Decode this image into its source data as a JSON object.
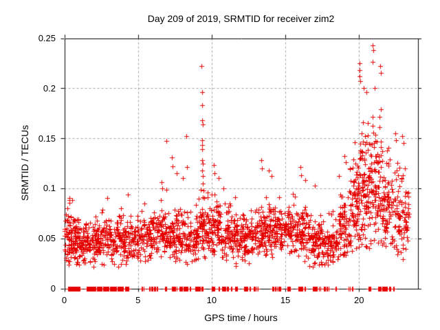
{
  "chart_data": {
    "type": "scatter",
    "title": "Day 209 of 2019, SRMTID for receiver zim2",
    "xlabel": "GPS time / hours",
    "ylabel": "SRMTID / TECUs",
    "xlim": [
      0,
      24
    ],
    "ylim": [
      0,
      0.25
    ],
    "xticks": [
      0,
      5,
      10,
      15,
      20
    ],
    "xtick_labels": [
      "0",
      "5",
      "10",
      "15",
      "20"
    ],
    "yticks": [
      0,
      0.05,
      0.1,
      0.15,
      0.2,
      0.25
    ],
    "ytick_labels": [
      "0",
      "0.05",
      "0.1",
      "0.15",
      "0.2",
      "0.25"
    ],
    "grid_xticks": [
      5,
      10,
      15,
      20
    ],
    "grid_yticks": [
      0.05,
      0.1,
      0.15,
      0.2
    ],
    "grid": true,
    "legend": "none",
    "background_color": "#ffffff",
    "border_color": "#000000",
    "grid_color": "#a0a0a0",
    "marker": {
      "shape": "plus",
      "color": "#e60000",
      "size": 7
    },
    "seed": 2019209,
    "series_name": "SRMTID",
    "bands": [
      {
        "x0": 0.0,
        "x1": 0.35,
        "n": 40,
        "mu": 0.048,
        "sd": 0.016,
        "lo": 0.02,
        "hi": 0.09
      },
      {
        "x0": 0.3,
        "x1": 1.0,
        "n": 85,
        "mu": 0.05,
        "sd": 0.014,
        "lo": 0.022,
        "hi": 0.092
      },
      {
        "x0": 1.0,
        "x1": 2.1,
        "n": 100,
        "mu": 0.044,
        "sd": 0.01,
        "lo": 0.02,
        "hi": 0.075
      },
      {
        "x0": 2.1,
        "x1": 3.1,
        "n": 95,
        "mu": 0.047,
        "sd": 0.011,
        "lo": 0.022,
        "hi": 0.09
      },
      {
        "x0": 3.1,
        "x1": 4.2,
        "n": 100,
        "mu": 0.049,
        "sd": 0.012,
        "lo": 0.02,
        "hi": 0.085
      },
      {
        "x0": 4.2,
        "x1": 5.2,
        "n": 80,
        "mu": 0.048,
        "sd": 0.011,
        "lo": 0.024,
        "hi": 0.08
      },
      {
        "x0": 5.2,
        "x1": 6.3,
        "n": 85,
        "mu": 0.052,
        "sd": 0.012,
        "lo": 0.026,
        "hi": 0.088
      },
      {
        "x0": 6.3,
        "x1": 7.2,
        "n": 80,
        "mu": 0.055,
        "sd": 0.014,
        "lo": 0.028,
        "hi": 0.1
      },
      {
        "x0": 7.2,
        "x1": 8.2,
        "n": 85,
        "mu": 0.053,
        "sd": 0.014,
        "lo": 0.026,
        "hi": 0.1
      },
      {
        "x0": 8.2,
        "x1": 9.1,
        "n": 80,
        "mu": 0.05,
        "sd": 0.013,
        "lo": 0.024,
        "hi": 0.1
      },
      {
        "x0": 9.1,
        "x1": 9.7,
        "n": 55,
        "mu": 0.06,
        "sd": 0.018,
        "lo": 0.03,
        "hi": 0.105
      },
      {
        "x0": 9.7,
        "x1": 10.6,
        "n": 85,
        "mu": 0.06,
        "sd": 0.017,
        "lo": 0.03,
        "hi": 0.115
      },
      {
        "x0": 10.6,
        "x1": 11.6,
        "n": 90,
        "mu": 0.053,
        "sd": 0.013,
        "lo": 0.026,
        "hi": 0.098
      },
      {
        "x0": 11.6,
        "x1": 12.6,
        "n": 90,
        "mu": 0.049,
        "sd": 0.011,
        "lo": 0.024,
        "hi": 0.082
      },
      {
        "x0": 12.6,
        "x1": 13.6,
        "n": 90,
        "mu": 0.054,
        "sd": 0.013,
        "lo": 0.028,
        "hi": 0.1
      },
      {
        "x0": 13.6,
        "x1": 14.6,
        "n": 95,
        "mu": 0.058,
        "sd": 0.014,
        "lo": 0.03,
        "hi": 0.105
      },
      {
        "x0": 14.6,
        "x1": 15.6,
        "n": 90,
        "mu": 0.058,
        "sd": 0.012,
        "lo": 0.03,
        "hi": 0.095
      },
      {
        "x0": 15.6,
        "x1": 16.6,
        "n": 90,
        "mu": 0.054,
        "sd": 0.013,
        "lo": 0.026,
        "hi": 0.105
      },
      {
        "x0": 16.6,
        "x1": 17.6,
        "n": 90,
        "mu": 0.048,
        "sd": 0.012,
        "lo": 0.02,
        "hi": 0.098
      },
      {
        "x0": 17.6,
        "x1": 18.6,
        "n": 80,
        "mu": 0.044,
        "sd": 0.011,
        "lo": 0.022,
        "hi": 0.078
      },
      {
        "x0": 18.6,
        "x1": 19.3,
        "n": 70,
        "mu": 0.062,
        "sd": 0.02,
        "lo": 0.032,
        "hi": 0.125
      },
      {
        "x0": 19.3,
        "x1": 20.0,
        "n": 85,
        "mu": 0.08,
        "sd": 0.028,
        "lo": 0.035,
        "hi": 0.16
      },
      {
        "x0": 20.0,
        "x1": 20.7,
        "n": 90,
        "mu": 0.095,
        "sd": 0.034,
        "lo": 0.04,
        "hi": 0.185
      },
      {
        "x0": 20.7,
        "x1": 21.5,
        "n": 95,
        "mu": 0.1,
        "sd": 0.036,
        "lo": 0.045,
        "hi": 0.2
      },
      {
        "x0": 21.5,
        "x1": 22.2,
        "n": 75,
        "mu": 0.08,
        "sd": 0.026,
        "lo": 0.04,
        "hi": 0.158
      },
      {
        "x0": 22.2,
        "x1": 22.9,
        "n": 60,
        "mu": 0.07,
        "sd": 0.024,
        "lo": 0.032,
        "hi": 0.15
      },
      {
        "x0": 22.9,
        "x1": 23.4,
        "n": 40,
        "mu": 0.062,
        "sd": 0.022,
        "lo": 0.028,
        "hi": 0.125
      }
    ],
    "spike_points": [
      [
        0.35,
        0.09
      ],
      [
        0.55,
        0.088
      ],
      [
        2.9,
        0.09
      ],
      [
        4.3,
        0.094
      ],
      [
        5.45,
        0.085
      ],
      [
        6.6,
        0.106
      ],
      [
        6.67,
        0.1
      ],
      [
        6.95,
        0.147
      ],
      [
        7.3,
        0.131
      ],
      [
        7.36,
        0.122
      ],
      [
        7.62,
        0.115
      ],
      [
        8.05,
        0.11
      ],
      [
        8.3,
        0.152
      ],
      [
        8.34,
        0.121
      ],
      [
        9.32,
        0.222
      ],
      [
        9.33,
        0.196
      ],
      [
        9.34,
        0.183
      ],
      [
        9.36,
        0.168
      ],
      [
        9.38,
        0.164
      ],
      [
        9.33,
        0.148
      ],
      [
        9.36,
        0.143
      ],
      [
        9.35,
        0.139
      ],
      [
        9.35,
        0.128
      ],
      [
        9.38,
        0.125
      ],
      [
        9.37,
        0.118
      ],
      [
        9.4,
        0.112
      ],
      [
        9.42,
        0.105
      ],
      [
        9.45,
        0.098
      ],
      [
        9.48,
        0.09
      ],
      [
        10.15,
        0.123
      ],
      [
        10.2,
        0.115
      ],
      [
        10.45,
        0.11
      ],
      [
        10.8,
        0.1
      ],
      [
        11.62,
        0.022
      ],
      [
        13.35,
        0.128
      ],
      [
        13.42,
        0.12
      ],
      [
        13.9,
        0.118
      ],
      [
        14.05,
        0.112
      ],
      [
        16.0,
        0.121
      ],
      [
        16.06,
        0.113
      ],
      [
        16.35,
        0.108
      ],
      [
        17.0,
        0.103
      ],
      [
        17.3,
        0.024
      ],
      [
        18.2,
        0.027
      ],
      [
        19.0,
        0.132
      ],
      [
        19.1,
        0.126
      ],
      [
        20.02,
        0.225
      ],
      [
        20.04,
        0.218
      ],
      [
        20.05,
        0.212
      ],
      [
        20.07,
        0.207
      ],
      [
        20.3,
        0.2
      ],
      [
        20.5,
        0.196
      ],
      [
        20.93,
        0.243
      ],
      [
        20.95,
        0.238
      ],
      [
        20.92,
        0.226
      ],
      [
        21.05,
        0.2
      ],
      [
        21.44,
        0.222
      ],
      [
        21.46,
        0.215
      ],
      [
        22.45,
        0.155
      ],
      [
        22.5,
        0.148
      ],
      [
        22.95,
        0.152
      ],
      [
        23.0,
        0.145
      ],
      [
        23.1,
        0.12
      ]
    ],
    "zero_segments": [
      [
        0.25,
        0.55,
        14
      ],
      [
        0.6,
        0.75,
        8
      ],
      [
        0.8,
        1.05,
        10
      ],
      [
        1.5,
        2.1,
        28
      ],
      [
        2.2,
        2.55,
        15
      ],
      [
        2.65,
        3.0,
        16
      ],
      [
        3.1,
        3.3,
        10
      ],
      [
        3.35,
        3.5,
        8
      ],
      [
        3.6,
        3.75,
        7
      ],
      [
        3.8,
        4.0,
        9
      ],
      [
        4.1,
        4.35,
        10
      ],
      [
        5.25,
        5.4,
        5
      ],
      [
        5.75,
        5.82,
        3
      ],
      [
        5.9,
        6.02,
        5
      ],
      [
        6.1,
        6.16,
        3
      ],
      [
        6.25,
        6.3,
        2
      ],
      [
        6.85,
        6.92,
        3
      ],
      [
        7.3,
        7.5,
        7
      ],
      [
        7.55,
        7.6,
        2
      ],
      [
        7.8,
        8.0,
        6
      ],
      [
        8.1,
        8.35,
        8
      ],
      [
        8.5,
        8.56,
        3
      ],
      [
        8.9,
        9.2,
        9
      ],
      [
        9.33,
        9.4,
        3
      ],
      [
        10.0,
        10.2,
        7
      ],
      [
        10.45,
        10.55,
        3
      ],
      [
        10.7,
        10.95,
        7
      ],
      [
        11.05,
        11.12,
        3
      ],
      [
        11.3,
        11.36,
        2
      ],
      [
        11.6,
        11.75,
        5
      ],
      [
        12.2,
        12.45,
        7
      ],
      [
        12.55,
        12.6,
        2
      ],
      [
        12.85,
        12.95,
        4
      ],
      [
        13.05,
        13.1,
        2
      ],
      [
        14.1,
        14.45,
        9
      ],
      [
        14.55,
        14.65,
        4
      ],
      [
        15.15,
        15.3,
        5
      ],
      [
        15.9,
        16.15,
        7
      ],
      [
        16.3,
        16.36,
        3
      ],
      [
        16.85,
        17.15,
        8
      ],
      [
        17.3,
        17.36,
        2
      ],
      [
        17.6,
        17.95,
        9
      ],
      [
        18.4,
        18.46,
        2
      ],
      [
        19.3,
        19.36,
        2
      ],
      [
        19.5,
        19.56,
        2
      ],
      [
        20.65,
        20.8,
        5
      ],
      [
        21.3,
        21.45,
        5
      ],
      [
        21.55,
        21.9,
        9
      ],
      [
        22.05,
        22.15,
        4
      ],
      [
        22.3,
        22.36,
        2
      ]
    ]
  }
}
